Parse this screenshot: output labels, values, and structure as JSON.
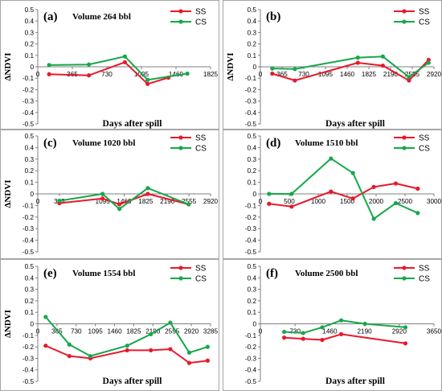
{
  "figure": {
    "y_axis_label": "ΔNDVI",
    "x_axis_label": "Days after spill",
    "colors": {
      "SS": "#e8192c",
      "CS": "#16a84b",
      "axis": "#7f7f7f",
      "frame": "#a6a6a6"
    }
  },
  "chart_data": [
    {
      "type": "line",
      "panel_label": "(a)",
      "title": "Volume 264 bbl",
      "xlabel": "Days after spill",
      "ylabel": "ΔNDVI",
      "x_ticks": [
        "0",
        "365",
        "730",
        "1095",
        "1460",
        "1825"
      ],
      "xlim": [
        0,
        1825
      ],
      "ylim": [
        -0.5,
        0.5
      ],
      "y_ticks": [
        "-0.5",
        "-0.4",
        "-0.3",
        "-0.2",
        "-0.1",
        "0",
        "0.1",
        "0.2",
        "0.3",
        "0.4",
        "0.5"
      ],
      "legend": "top-right",
      "series": [
        {
          "name": "SS",
          "points": [
            [
              120,
              -0.065
            ],
            [
              540,
              -0.075
            ],
            [
              920,
              0.04
            ],
            [
              1160,
              -0.15
            ],
            [
              1380,
              -0.095
            ]
          ]
        },
        {
          "name": "CS",
          "points": [
            [
              120,
              0.015
            ],
            [
              540,
              0.02
            ],
            [
              920,
              0.09
            ],
            [
              1160,
              -0.115
            ],
            [
              1580,
              -0.06
            ]
          ]
        }
      ]
    },
    {
      "type": "line",
      "panel_label": "(b)",
      "title": "",
      "xlabel": "Days after spill",
      "ylabel": "ΔNDVI",
      "x_ticks": [
        "0",
        "365",
        "730",
        "1095",
        "1460",
        "1825",
        "2190",
        "2555",
        "2920"
      ],
      "xlim": [
        0,
        2920
      ],
      "ylim": [
        -0.5,
        0.5
      ],
      "y_ticks": [
        "-0.5",
        "-0.4",
        "-0.3",
        "-0.2",
        "-0.1",
        "0",
        "0.1",
        "0.2",
        "0.3",
        "0.4",
        "0.5"
      ],
      "legend": "top-right",
      "series": [
        {
          "name": "SS",
          "points": [
            [
              200,
              -0.06
            ],
            [
              580,
              -0.12
            ],
            [
              1640,
              0.035
            ],
            [
              2060,
              0.01
            ],
            [
              2500,
              -0.12
            ],
            [
              2830,
              0.06
            ]
          ]
        },
        {
          "name": "CS",
          "points": [
            [
              200,
              -0.015
            ],
            [
              580,
              -0.02
            ],
            [
              1640,
              0.08
            ],
            [
              2060,
              0.09
            ],
            [
              2500,
              -0.09
            ],
            [
              2830,
              0.035
            ]
          ]
        }
      ]
    },
    {
      "type": "line",
      "panel_label": "(c)",
      "title": "Volume 1020 bbl",
      "xlabel": "",
      "ylabel": "ΔNDVI",
      "x_ticks": [
        "0",
        "365",
        "1095",
        "1460",
        "1825",
        "2190",
        "2555",
        "2920"
      ],
      "xlim": [
        0,
        2920
      ],
      "ylim": [
        -0.5,
        0.5
      ],
      "y_ticks": [
        "-0.5",
        "-0.4",
        "-0.3",
        "-0.2",
        "-0.1",
        "0",
        "0.1",
        "0.2",
        "0.3",
        "0.4",
        "0.5"
      ],
      "legend": "top-right",
      "series": [
        {
          "name": "SS",
          "points": [
            [
              365,
              -0.08
            ],
            [
              1095,
              -0.04
            ],
            [
              1380,
              -0.09
            ],
            [
              1860,
              0.0
            ],
            [
              2550,
              -0.09
            ]
          ]
        },
        {
          "name": "CS",
          "points": [
            [
              365,
              -0.06
            ],
            [
              1095,
              0.0
            ],
            [
              1380,
              -0.13
            ],
            [
              1860,
              0.05
            ],
            [
              2550,
              -0.09
            ]
          ]
        }
      ]
    },
    {
      "type": "line",
      "panel_label": "(d)",
      "title": "Volume 1510 bbl",
      "xlabel": "",
      "ylabel": "",
      "x_ticks": [
        "0",
        "500",
        "1000",
        "1500",
        "2000",
        "2500",
        "3000"
      ],
      "xlim": [
        0,
        3000
      ],
      "ylim": [
        -0.5,
        0.5
      ],
      "y_ticks": [
        "-0.5",
        "-0.4",
        "-0.3",
        "-0.2",
        "-0.1",
        "0",
        "0.1",
        "0.2",
        "0.3",
        "0.4",
        "0.5"
      ],
      "legend": "top-right",
      "series": [
        {
          "name": "SS",
          "points": [
            [
              150,
              -0.085
            ],
            [
              540,
              -0.11
            ],
            [
              1220,
              0.02
            ],
            [
              1600,
              -0.04
            ],
            [
              1960,
              0.06
            ],
            [
              2340,
              0.09
            ],
            [
              2720,
              0.045
            ]
          ]
        },
        {
          "name": "CS",
          "points": [
            [
              150,
              0.0
            ],
            [
              540,
              0.0
            ],
            [
              1220,
              0.305
            ],
            [
              1600,
              0.18
            ],
            [
              1960,
              -0.215
            ],
            [
              2340,
              -0.08
            ],
            [
              2720,
              -0.165
            ]
          ]
        }
      ]
    },
    {
      "type": "line",
      "panel_label": "(e)",
      "title": "Volume 1554 bbl",
      "xlabel": "Days after spill",
      "ylabel": "ΔNDVI",
      "x_ticks": [
        "0",
        "365",
        "730",
        "1095",
        "1460",
        "1825",
        "2190",
        "2555",
        "2920",
        "3285"
      ],
      "xlim": [
        0,
        3285
      ],
      "ylim": [
        -0.5,
        0.5
      ],
      "y_ticks": [
        "-0.5",
        "-0.4",
        "-0.3",
        "-0.2",
        "-0.1",
        "0",
        "0.1",
        "0.2",
        "0.3",
        "0.4",
        "0.5"
      ],
      "legend": "top-right",
      "series": [
        {
          "name": "SS",
          "points": [
            [
              150,
              -0.19
            ],
            [
              600,
              -0.28
            ],
            [
              1000,
              -0.3
            ],
            [
              1700,
              -0.23
            ],
            [
              2150,
              -0.23
            ],
            [
              2520,
              -0.22
            ],
            [
              2880,
              -0.34
            ],
            [
              3230,
              -0.32
            ]
          ]
        },
        {
          "name": "CS",
          "points": [
            [
              150,
              0.06
            ],
            [
              600,
              -0.18
            ],
            [
              1000,
              -0.28
            ],
            [
              1700,
              -0.19
            ],
            [
              2150,
              -0.09
            ],
            [
              2520,
              0.01
            ],
            [
              2880,
              -0.25
            ],
            [
              3230,
              -0.2
            ]
          ]
        }
      ]
    },
    {
      "type": "line",
      "panel_label": "(f)",
      "title": "Volume 2500 bbl",
      "xlabel": "Days after spill",
      "ylabel": "",
      "x_ticks": [
        "0",
        "730",
        "1460",
        "2190",
        "2920",
        "3650"
      ],
      "xlim": [
        0,
        3650
      ],
      "ylim": [
        -0.5,
        0.5
      ],
      "y_ticks": [
        "-0.5",
        "-0.4",
        "-0.3",
        "-0.2",
        "-0.1",
        "0",
        "0.1",
        "0.2",
        "0.3",
        "0.4",
        "0.5"
      ],
      "legend": "top-right",
      "series": [
        {
          "name": "SS",
          "points": [
            [
              500,
              -0.12
            ],
            [
              900,
              -0.13
            ],
            [
              1300,
              -0.14
            ],
            [
              1700,
              -0.09
            ],
            [
              3050,
              -0.17
            ]
          ]
        },
        {
          "name": "CS",
          "points": [
            [
              500,
              -0.07
            ],
            [
              900,
              -0.08
            ],
            [
              1300,
              -0.03
            ],
            [
              1700,
              0.03
            ],
            [
              2200,
              0.0
            ],
            [
              3050,
              -0.03
            ]
          ]
        }
      ]
    }
  ]
}
